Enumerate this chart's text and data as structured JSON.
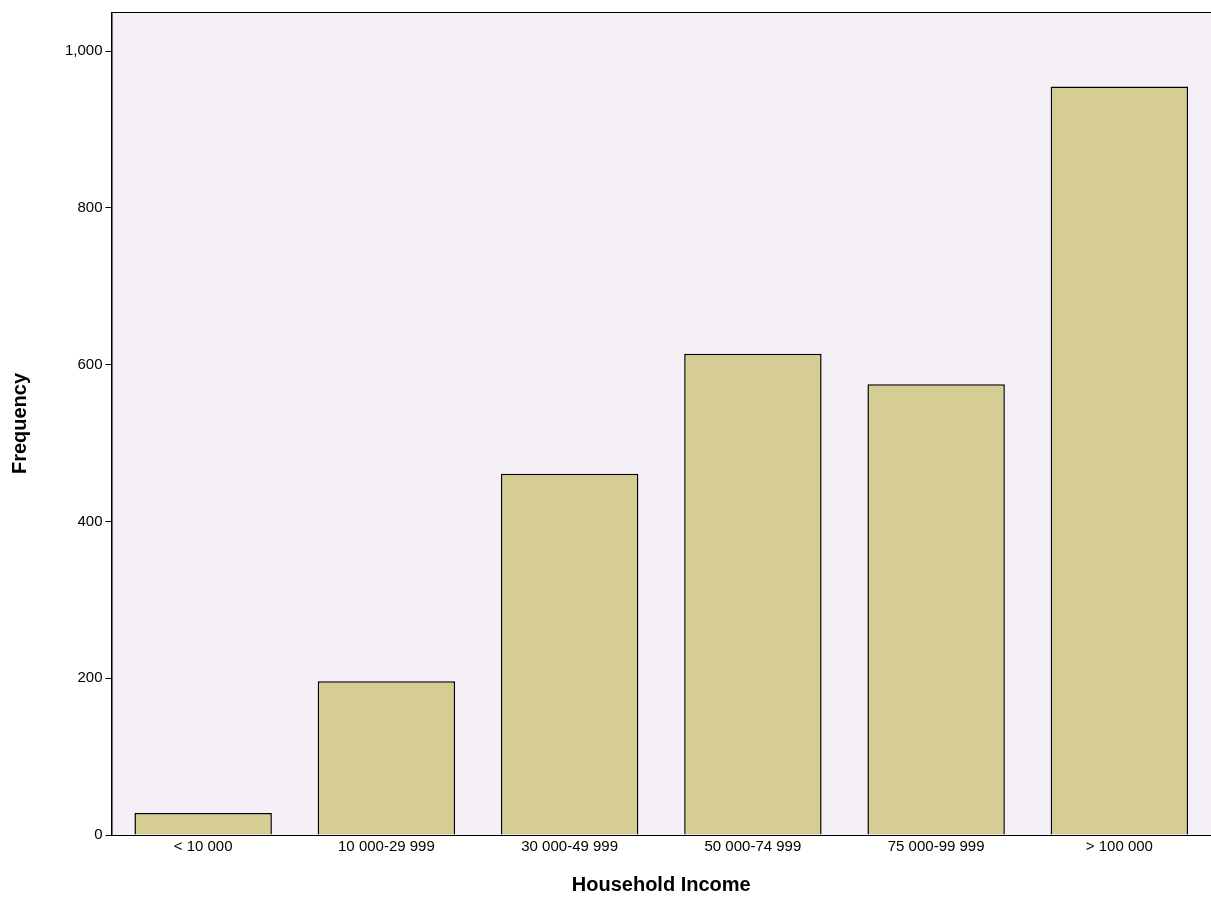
{
  "chart_data": {
    "type": "bar",
    "xlabel": "Household Income",
    "ylabel": "Frequency",
    "categories": [
      "< 10 000",
      "10 000-29 999",
      "30 000-49 999",
      "50 000-74 999",
      "75 000-99 999",
      "> 100 000"
    ],
    "values": [
      28,
      196,
      461,
      614,
      575,
      955
    ],
    "color": "#d6cd94",
    "ylim": [
      0,
      1050
    ],
    "yticks": [
      0,
      200,
      400,
      600,
      800,
      {
        "value": 1000,
        "label": "1,000"
      }
    ],
    "grid": false,
    "legend": false
  }
}
